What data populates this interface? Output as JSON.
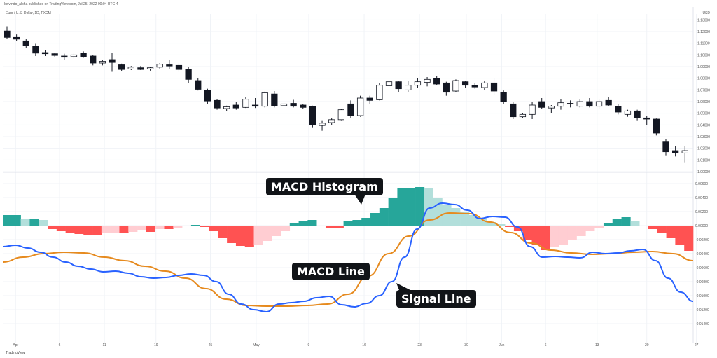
{
  "header": {
    "publisher": "kelvindo_alpha published on TradingView.com, Jul 25, 2022 00:04 UTC-4",
    "symbol": "Euro / U.S. Dollar, 1D, FXCM",
    "currency": "USD",
    "brand": "TradingView"
  },
  "colors": {
    "candle_bear": "#131722",
    "candle_bull": "#ffffff",
    "hist_up_strong": "#26a69a",
    "hist_up_weak": "#b2dfdb",
    "hist_down_strong": "#ff5252",
    "hist_down_weak": "#ffcdd2",
    "macd_line": "#2962ff",
    "signal_line": "#e68a1e",
    "callout_bg": "#111418"
  },
  "callouts": {
    "histogram": "MACD Histogram",
    "macd": "MACD Line",
    "signal": "Signal Line"
  },
  "chart_data": [
    {
      "type": "candlestick",
      "title": "",
      "xlabel": "",
      "ylabel": "",
      "ylim": [
        1.0,
        1.135
      ],
      "yticks": [
        "1.13000",
        "1.12000",
        "1.11000",
        "1.10000",
        "1.09000",
        "1.08000",
        "1.07000",
        "1.06000",
        "1.05000",
        "1.04000",
        "1.03000",
        "1.02000",
        "1.01000",
        "1.00000"
      ],
      "ytick_values": [
        1.13,
        1.12,
        1.11,
        1.1,
        1.09,
        1.08,
        1.07,
        1.06,
        1.05,
        1.04,
        1.03,
        1.02,
        1.01,
        1.0
      ],
      "grid": true,
      "candles": [
        {
          "o": 1.1205,
          "h": 1.1245,
          "l": 1.114,
          "c": 1.115
        },
        {
          "o": 1.115,
          "h": 1.1175,
          "l": 1.112,
          "c": 1.1135
        },
        {
          "o": 1.112,
          "h": 1.114,
          "l": 1.106,
          "c": 1.108
        },
        {
          "o": 1.1075,
          "h": 1.1095,
          "l": 1.099,
          "c": 1.1015
        },
        {
          "o": 1.102,
          "h": 1.104,
          "l": 1.099,
          "c": 1.101
        },
        {
          "o": 1.101,
          "h": 1.102,
          "l": 1.0985,
          "c": 1.0995
        },
        {
          "o": 1.099,
          "h": 1.101,
          "l": 1.096,
          "c": 1.098
        },
        {
          "o": 1.0985,
          "h": 1.101,
          "l": 1.097,
          "c": 1.1
        },
        {
          "o": 1.1015,
          "h": 1.103,
          "l": 1.0975,
          "c": 1.0985
        },
        {
          "o": 1.099,
          "h": 1.1,
          "l": 1.091,
          "c": 1.093
        },
        {
          "o": 1.093,
          "h": 1.0955,
          "l": 1.091,
          "c": 1.0945
        },
        {
          "o": 1.096,
          "h": 1.102,
          "l": 1.0855,
          "c": 1.0935
        },
        {
          "o": 1.0915,
          "h": 1.0925,
          "l": 1.086,
          "c": 1.0875
        },
        {
          "o": 1.088,
          "h": 1.0905,
          "l": 1.087,
          "c": 1.0895
        },
        {
          "o": 1.089,
          "h": 1.0905,
          "l": 1.087,
          "c": 1.0875
        },
        {
          "o": 1.088,
          "h": 1.09,
          "l": 1.0865,
          "c": 1.089
        },
        {
          "o": 1.0895,
          "h": 1.093,
          "l": 1.088,
          "c": 1.092
        },
        {
          "o": 1.0915,
          "h": 1.0955,
          "l": 1.088,
          "c": 1.0905
        },
        {
          "o": 1.091,
          "h": 1.093,
          "l": 1.0855,
          "c": 1.0875
        },
        {
          "o": 1.0875,
          "h": 1.0895,
          "l": 1.076,
          "c": 1.079
        },
        {
          "o": 1.078,
          "h": 1.08,
          "l": 1.0695,
          "c": 1.0705
        },
        {
          "o": 1.0695,
          "h": 1.071,
          "l": 1.058,
          "c": 1.0605
        },
        {
          "o": 1.061,
          "h": 1.062,
          "l": 1.053,
          "c": 1.0545
        },
        {
          "o": 1.054,
          "h": 1.0565,
          "l": 1.052,
          "c": 1.0555
        },
        {
          "o": 1.057,
          "h": 1.06,
          "l": 1.053,
          "c": 1.0545
        },
        {
          "o": 1.055,
          "h": 1.064,
          "l": 1.0545,
          "c": 1.062
        },
        {
          "o": 1.057,
          "h": 1.063,
          "l": 1.0545,
          "c": 1.056
        },
        {
          "o": 1.056,
          "h": 1.0685,
          "l": 1.055,
          "c": 1.0675
        },
        {
          "o": 1.0665,
          "h": 1.069,
          "l": 1.055,
          "c": 1.0565
        },
        {
          "o": 1.0565,
          "h": 1.06,
          "l": 1.052,
          "c": 1.058
        },
        {
          "o": 1.0585,
          "h": 1.0615,
          "l": 1.055,
          "c": 1.056
        },
        {
          "o": 1.057,
          "h": 1.058,
          "l": 1.0535,
          "c": 1.055
        },
        {
          "o": 1.056,
          "h": 1.0565,
          "l": 1.038,
          "c": 1.04
        },
        {
          "o": 1.0395,
          "h": 1.044,
          "l": 1.035,
          "c": 1.0415
        },
        {
          "o": 1.042,
          "h": 1.046,
          "l": 1.04,
          "c": 1.0445
        },
        {
          "o": 1.0445,
          "h": 1.054,
          "l": 1.044,
          "c": 1.053
        },
        {
          "o": 1.058,
          "h": 1.061,
          "l": 1.046,
          "c": 1.048
        },
        {
          "o": 1.048,
          "h": 1.065,
          "l": 1.047,
          "c": 1.063
        },
        {
          "o": 1.063,
          "h": 1.065,
          "l": 1.058,
          "c": 1.061
        },
        {
          "o": 1.0615,
          "h": 1.076,
          "l": 1.061,
          "c": 1.074
        },
        {
          "o": 1.0735,
          "h": 1.079,
          "l": 1.07,
          "c": 1.077
        },
        {
          "o": 1.077,
          "h": 1.078,
          "l": 1.068,
          "c": 1.071
        },
        {
          "o": 1.07,
          "h": 1.078,
          "l": 1.068,
          "c": 1.074
        },
        {
          "o": 1.074,
          "h": 1.08,
          "l": 1.072,
          "c": 1.077
        },
        {
          "o": 1.0765,
          "h": 1.081,
          "l": 1.073,
          "c": 1.079
        },
        {
          "o": 1.08,
          "h": 1.082,
          "l": 1.074,
          "c": 1.075
        },
        {
          "o": 1.076,
          "h": 1.077,
          "l": 1.065,
          "c": 1.068
        },
        {
          "o": 1.069,
          "h": 1.079,
          "l": 1.068,
          "c": 1.078
        },
        {
          "o": 1.077,
          "h": 1.078,
          "l": 1.072,
          "c": 1.074
        },
        {
          "o": 1.074,
          "h": 1.076,
          "l": 1.071,
          "c": 1.0725
        },
        {
          "o": 1.072,
          "h": 1.078,
          "l": 1.07,
          "c": 1.076
        },
        {
          "o": 1.076,
          "h": 1.0805,
          "l": 1.066,
          "c": 1.069
        },
        {
          "o": 1.068,
          "h": 1.0695,
          "l": 1.058,
          "c": 1.06
        },
        {
          "o": 1.058,
          "h": 1.06,
          "l": 1.045,
          "c": 1.047
        },
        {
          "o": 1.047,
          "h": 1.05,
          "l": 1.046,
          "c": 1.049
        },
        {
          "o": 1.049,
          "h": 1.06,
          "l": 1.045,
          "c": 1.057
        },
        {
          "o": 1.06,
          "h": 1.063,
          "l": 1.054,
          "c": 1.055
        },
        {
          "o": 1.0545,
          "h": 1.057,
          "l": 1.05,
          "c": 1.056
        },
        {
          "o": 1.056,
          "h": 1.062,
          "l": 1.053,
          "c": 1.059
        },
        {
          "o": 1.0585,
          "h": 1.061,
          "l": 1.055,
          "c": 1.058
        },
        {
          "o": 1.056,
          "h": 1.062,
          "l": 1.055,
          "c": 1.06
        },
        {
          "o": 1.06,
          "h": 1.063,
          "l": 1.055,
          "c": 1.056
        },
        {
          "o": 1.056,
          "h": 1.062,
          "l": 1.054,
          "c": 1.06
        },
        {
          "o": 1.061,
          "h": 1.064,
          "l": 1.056,
          "c": 1.057
        },
        {
          "o": 1.056,
          "h": 1.058,
          "l": 1.049,
          "c": 1.051
        },
        {
          "o": 1.049,
          "h": 1.053,
          "l": 1.047,
          "c": 1.052
        },
        {
          "o": 1.052,
          "h": 1.053,
          "l": 1.044,
          "c": 1.046
        },
        {
          "o": 1.046,
          "h": 1.048,
          "l": 1.04,
          "c": 1.045
        },
        {
          "o": 1.045,
          "h": 1.0455,
          "l": 1.031,
          "c": 1.033
        },
        {
          "o": 1.026,
          "h": 1.028,
          "l": 1.014,
          "c": 1.017
        },
        {
          "o": 1.018,
          "h": 1.022,
          "l": 1.013,
          "c": 1.016
        },
        {
          "o": 1.016,
          "h": 1.022,
          "l": 1.008,
          "c": 1.018
        }
      ]
    },
    {
      "type": "bar",
      "title": "",
      "xlabel": "",
      "ylabel": "",
      "ylim": [
        -0.0168,
        0.0072
      ],
      "yticks": [
        "0.00600",
        "0.00400",
        "0.00200",
        "0.00000",
        "-0.00200",
        "-0.00400",
        "-0.00600",
        "-0.00800",
        "-0.01000",
        "-0.01200",
        "-0.01400"
      ],
      "ytick_values": [
        0.006,
        0.004,
        0.002,
        0.0,
        -0.002,
        -0.004,
        -0.006,
        -0.008,
        -0.01,
        -0.012,
        -0.014
      ],
      "x_ticks": [
        "Apr",
        "6",
        "11",
        "19",
        "25",
        "May",
        "9",
        "16",
        "23",
        "30",
        "Jun",
        "6",
        "13",
        "20",
        "27",
        "Jul",
        "6"
      ],
      "x_tick_index": [
        0.9,
        5.5,
        10.2,
        15.6,
        21.3,
        26.1,
        31.6,
        37.4,
        43.2,
        48.1,
        51.8,
        56.4,
        61.8,
        67.0,
        72.2,
        77.1,
        81.2
      ],
      "histogram": [
        0.0015,
        0.0015,
        0.001,
        0.001,
        0.0008,
        -0.0005,
        -0.0008,
        -0.001,
        -0.0012,
        -0.0013,
        -0.0013,
        -0.0011,
        -0.001,
        -0.001,
        -0.0009,
        -0.0007,
        -0.0009,
        -0.0005,
        -0.0005,
        -0.0003,
        -0.0001,
        0.0001,
        -0.0002,
        -0.0008,
        -0.0018,
        -0.0025,
        -0.0029,
        -0.003,
        -0.0028,
        -0.0022,
        -0.0015,
        -0.0008,
        0.0004,
        0.0006,
        0.0008,
        -0.0001,
        -0.0003,
        -0.0003,
        0.0006,
        0.0008,
        0.0011,
        0.0018,
        0.0025,
        0.004,
        0.0053,
        0.0054,
        0.0055,
        0.0054,
        0.004,
        0.003,
        0.0025,
        0.002,
        0.0015,
        0.001,
        0.0005,
        0.0002,
        -0.0002,
        -0.0008,
        -0.002,
        -0.0028,
        -0.0035,
        -0.0031,
        -0.0028,
        -0.002,
        -0.0015,
        -0.0008,
        -0.0004,
        0.0004,
        0.0009,
        0.0012,
        0.0006,
        0.0,
        -0.0005,
        -0.001,
        -0.0018,
        -0.0028,
        -0.0036
      ],
      "series": [
        {
          "name": "MACD Line",
          "values": [
            -0.003,
            -0.0028,
            -0.0032,
            -0.0038,
            -0.0045,
            -0.0052,
            -0.0058,
            -0.0062,
            -0.0066,
            -0.0065,
            -0.0068,
            -0.0073,
            -0.0075,
            -0.0074,
            -0.0071,
            -0.0069,
            -0.0071,
            -0.008,
            -0.0098,
            -0.0112,
            -0.012,
            -0.0123,
            -0.0112,
            -0.011,
            -0.0108,
            -0.0103,
            -0.0101,
            -0.0113,
            -0.0116,
            -0.0111,
            -0.01,
            -0.008,
            -0.0045,
            -0.0005,
            0.0025,
            0.0032,
            0.003,
            0.0022,
            0.001,
            0.0013,
            0.0012,
            -0.0002,
            -0.003,
            -0.0045,
            -0.0044,
            -0.0045,
            -0.0046,
            -0.0038,
            -0.004,
            -0.0039,
            -0.0036,
            -0.0034,
            -0.005,
            -0.0075,
            -0.0095,
            -0.0108
          ]
        },
        {
          "name": "Signal Line",
          "values": [
            -0.0052,
            -0.0045,
            -0.004,
            -0.0038,
            -0.0039,
            -0.0045,
            -0.005,
            -0.0058,
            -0.0065,
            -0.0075,
            -0.009,
            -0.0105,
            -0.0114,
            -0.0115,
            -0.0115,
            -0.0114,
            -0.0112,
            -0.0098,
            -0.0072,
            -0.004,
            -0.0015,
            0.0008,
            0.0018,
            0.0017,
            0.0005,
            -0.001,
            -0.0025,
            -0.0035,
            -0.0039,
            -0.0041,
            -0.004,
            -0.0038,
            -0.0037,
            -0.004,
            -0.005
          ]
        }
      ]
    }
  ]
}
